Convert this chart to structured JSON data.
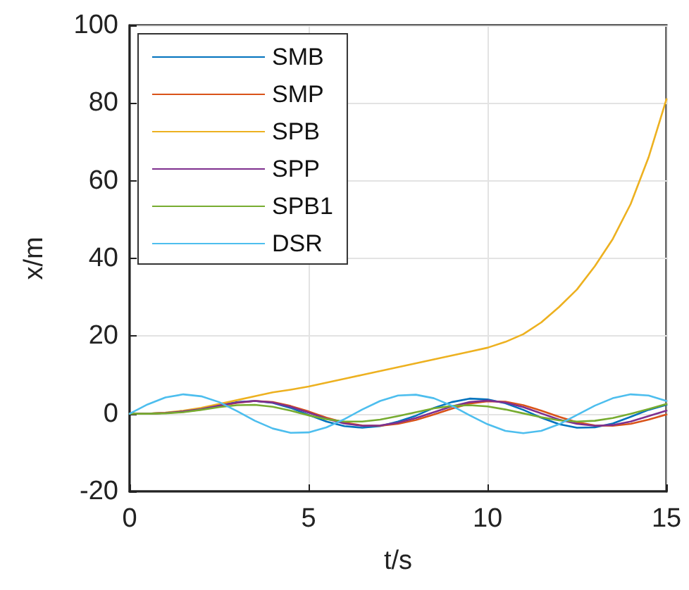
{
  "chart_data": {
    "type": "line",
    "xlabel": "t/s",
    "ylabel": "x/m",
    "x": [
      0,
      0.5,
      1,
      1.5,
      2,
      2.5,
      3,
      3.5,
      4,
      4.5,
      5,
      5.5,
      6,
      6.5,
      7,
      7.5,
      8,
      8.5,
      9,
      9.5,
      10,
      10.5,
      11,
      11.5,
      12,
      12.5,
      13,
      13.5,
      14,
      14.5,
      15
    ],
    "series": [
      {
        "name": "SMB",
        "color": "#0072bd",
        "values": [
          0,
          0,
          0.2,
          0.6,
          1.3,
          2.2,
          3,
          3.3,
          2.8,
          1.5,
          -0.3,
          -2,
          -3.2,
          -3.6,
          -3.2,
          -2,
          -0.5,
          1.5,
          3,
          3.9,
          3.7,
          2.7,
          1,
          -1,
          -2.7,
          -3.6,
          -3.5,
          -2.5,
          -0.8,
          1,
          2.3
        ]
      },
      {
        "name": "SMP",
        "color": "#d95319",
        "values": [
          0,
          0,
          0.2,
          0.5,
          1.1,
          2,
          2.8,
          3.3,
          3,
          2,
          0.6,
          -1,
          -2.3,
          -3,
          -3.1,
          -2.6,
          -1.6,
          -0.2,
          1.3,
          2.6,
          3.2,
          3.1,
          2.2,
          0.8,
          -0.8,
          -2.2,
          -3,
          -3.1,
          -2.6,
          -1.5,
          -0.2
        ]
      },
      {
        "name": "SPB",
        "color": "#edb120",
        "values": [
          0,
          0,
          0.3,
          0.8,
          1.5,
          2.5,
          3.5,
          4.5,
          5.5,
          6.2,
          7,
          8,
          9,
          10,
          11,
          12,
          13,
          14,
          15,
          16,
          17,
          18.5,
          20.5,
          23.5,
          27.5,
          32,
          38,
          45,
          54,
          66,
          81
        ]
      },
      {
        "name": "SPP",
        "color": "#7e2f8e",
        "values": [
          0,
          0,
          0.2,
          0.6,
          1.2,
          2.1,
          2.9,
          3.3,
          2.9,
          1.8,
          0.3,
          -1.3,
          -2.5,
          -3.1,
          -3,
          -2.3,
          -1.1,
          0.4,
          1.9,
          3,
          3.4,
          2.9,
          1.7,
          0.1,
          -1.5,
          -2.6,
          -3.1,
          -2.9,
          -2,
          -0.6,
          0.8
        ]
      },
      {
        "name": "SPB1",
        "color": "#77ac30",
        "values": [
          0,
          0,
          0.1,
          0.4,
          1,
          1.7,
          2.2,
          2.3,
          1.8,
          0.8,
          -0.4,
          -1.4,
          -2,
          -2,
          -1.5,
          -0.6,
          0.4,
          1.4,
          2,
          2.2,
          1.9,
          1.1,
          0.1,
          -0.9,
          -1.7,
          -2,
          -1.8,
          -1.1,
          0,
          1.2,
          2.5
        ]
      },
      {
        "name": "DSR",
        "color": "#4dbeee",
        "values": [
          0,
          2.4,
          4.2,
          5,
          4.5,
          3,
          0.7,
          -1.8,
          -3.8,
          -4.9,
          -4.8,
          -3.5,
          -1.4,
          1.1,
          3.3,
          4.7,
          4.9,
          4,
          2.1,
          -0.4,
          -2.7,
          -4.4,
          -5,
          -4.4,
          -2.7,
          -0.3,
          2.1,
          4,
          5,
          4.7,
          3.3
        ]
      }
    ],
    "xlim": [
      0,
      15
    ],
    "xticks": [
      0,
      5,
      10,
      15
    ],
    "ylim": [
      -20,
      100
    ],
    "yticks": [
      -20,
      0,
      20,
      40,
      60,
      80,
      100
    ],
    "grid": true,
    "legend": "top left",
    "marker": "none",
    "line_style": "solid"
  }
}
